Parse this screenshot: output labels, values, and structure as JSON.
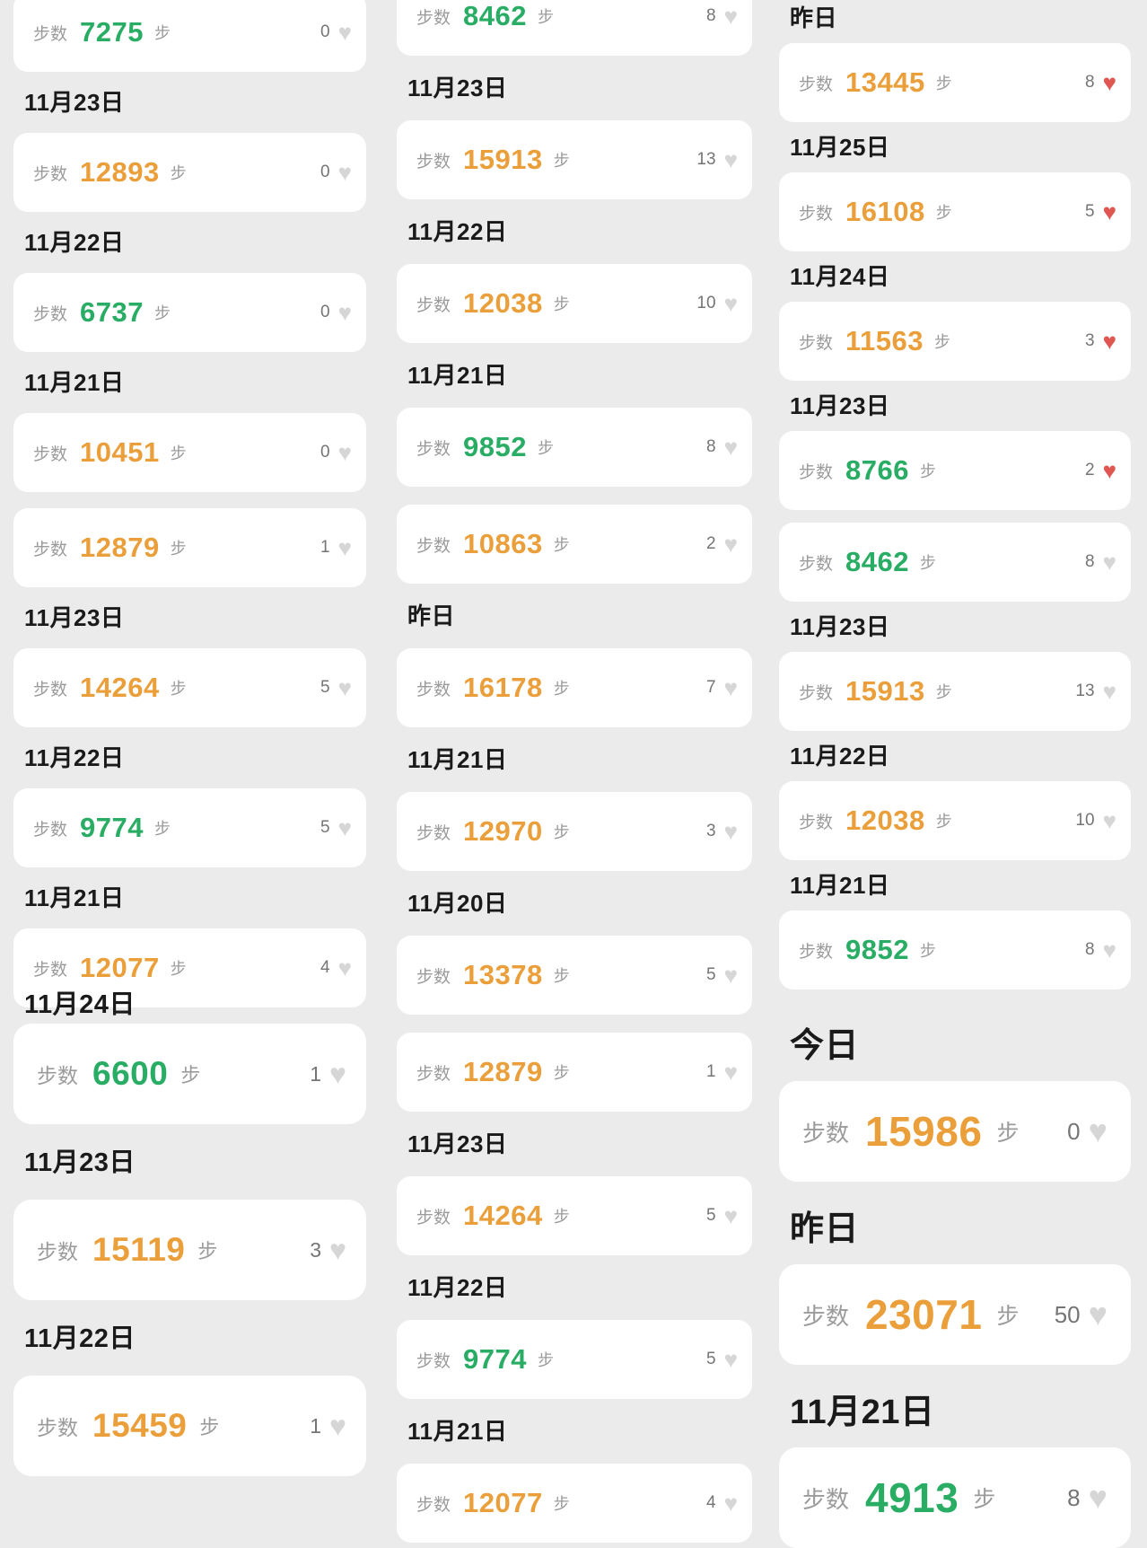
{
  "app": {
    "steps_label": "步数",
    "steps_unit": "步"
  },
  "palette": {
    "background": "#ebebeb",
    "card": "#ffffff",
    "header_text": "#1a1a1a",
    "label_gray": "#9b9b9b",
    "count_gray": "#757575",
    "steps_orange": "#eb9f3a",
    "steps_green": "#29ad64",
    "heart_red": "#e05752",
    "heart_gray": "#d6d6d6"
  },
  "columns": [
    {
      "id": "left",
      "items": [
        {
          "type": "card",
          "steps": "7275",
          "tone": "green",
          "likes": "0",
          "liked": false,
          "scale": "normal"
        },
        {
          "type": "header",
          "label": "11月23日",
          "scale": "normal"
        },
        {
          "type": "card",
          "steps": "12893",
          "tone": "orange",
          "likes": "0",
          "liked": false,
          "scale": "normal"
        },
        {
          "type": "header",
          "label": "11月22日",
          "scale": "normal"
        },
        {
          "type": "card",
          "steps": "6737",
          "tone": "green",
          "likes": "0",
          "liked": false,
          "scale": "normal"
        },
        {
          "type": "header",
          "label": "11月21日",
          "scale": "normal"
        },
        {
          "type": "card",
          "steps": "10451",
          "tone": "orange",
          "likes": "0",
          "liked": false,
          "scale": "normal"
        },
        {
          "type": "card",
          "steps": "12879",
          "tone": "orange",
          "likes": "1",
          "liked": false,
          "scale": "normal"
        },
        {
          "type": "header",
          "label": "11月23日",
          "scale": "normal"
        },
        {
          "type": "card",
          "steps": "14264",
          "tone": "orange",
          "likes": "5",
          "liked": false,
          "scale": "normal"
        },
        {
          "type": "header",
          "label": "11月22日",
          "scale": "normal"
        },
        {
          "type": "card",
          "steps": "9774",
          "tone": "green",
          "likes": "5",
          "liked": false,
          "scale": "normal"
        },
        {
          "type": "header",
          "label": "11月21日",
          "scale": "normal"
        },
        {
          "type": "card",
          "steps": "12077",
          "tone": "orange",
          "likes": "4",
          "liked": false,
          "scale": "normal"
        },
        {
          "type": "header",
          "label": "11月24日",
          "scale": "medium",
          "clipped": true
        },
        {
          "type": "card",
          "steps": "6600",
          "tone": "green",
          "likes": "1",
          "liked": false,
          "scale": "medium"
        },
        {
          "type": "header",
          "label": "11月23日",
          "scale": "medium"
        },
        {
          "type": "card",
          "steps": "15119",
          "tone": "orange",
          "likes": "3",
          "liked": false,
          "scale": "medium"
        },
        {
          "type": "header",
          "label": "11月22日",
          "scale": "medium"
        },
        {
          "type": "card",
          "steps": "15459",
          "tone": "orange",
          "likes": "1",
          "liked": false,
          "scale": "medium"
        }
      ]
    },
    {
      "id": "middle",
      "items": [
        {
          "type": "card",
          "steps": "8462",
          "tone": "green",
          "likes": "8",
          "liked": false,
          "scale": "normal"
        },
        {
          "type": "header",
          "label": "11月23日",
          "scale": "normal"
        },
        {
          "type": "card",
          "steps": "15913",
          "tone": "orange",
          "likes": "13",
          "liked": false,
          "scale": "normal"
        },
        {
          "type": "header",
          "label": "11月22日",
          "scale": "normal"
        },
        {
          "type": "card",
          "steps": "12038",
          "tone": "orange",
          "likes": "10",
          "liked": false,
          "scale": "normal"
        },
        {
          "type": "header",
          "label": "11月21日",
          "scale": "normal"
        },
        {
          "type": "card",
          "steps": "9852",
          "tone": "green",
          "likes": "8",
          "liked": false,
          "scale": "normal"
        },
        {
          "type": "card",
          "steps": "10863",
          "tone": "orange",
          "likes": "2",
          "liked": false,
          "scale": "normal"
        },
        {
          "type": "header",
          "label": "昨日",
          "scale": "normal"
        },
        {
          "type": "card",
          "steps": "16178",
          "tone": "orange",
          "likes": "7",
          "liked": false,
          "scale": "normal"
        },
        {
          "type": "header",
          "label": "11月21日",
          "scale": "normal"
        },
        {
          "type": "card",
          "steps": "12970",
          "tone": "orange",
          "likes": "3",
          "liked": false,
          "scale": "normal"
        },
        {
          "type": "header",
          "label": "11月20日",
          "scale": "normal"
        },
        {
          "type": "card",
          "steps": "13378",
          "tone": "orange",
          "likes": "5",
          "liked": false,
          "scale": "normal"
        },
        {
          "type": "card",
          "steps": "12879",
          "tone": "orange",
          "likes": "1",
          "liked": false,
          "scale": "normal"
        },
        {
          "type": "header",
          "label": "11月23日",
          "scale": "normal"
        },
        {
          "type": "card",
          "steps": "14264",
          "tone": "orange",
          "likes": "5",
          "liked": false,
          "scale": "normal"
        },
        {
          "type": "header",
          "label": "11月22日",
          "scale": "normal"
        },
        {
          "type": "card",
          "steps": "9774",
          "tone": "green",
          "likes": "5",
          "liked": false,
          "scale": "normal"
        },
        {
          "type": "header",
          "label": "11月21日",
          "scale": "normal"
        },
        {
          "type": "card",
          "steps": "12077",
          "tone": "orange",
          "likes": "4",
          "liked": false,
          "scale": "normal"
        }
      ]
    },
    {
      "id": "right",
      "items": [
        {
          "type": "header",
          "label": "昨日",
          "scale": "normal"
        },
        {
          "type": "card",
          "steps": "13445",
          "tone": "orange",
          "likes": "8",
          "liked": true,
          "scale": "normal"
        },
        {
          "type": "header",
          "label": "11月25日",
          "scale": "normal"
        },
        {
          "type": "card",
          "steps": "16108",
          "tone": "orange",
          "likes": "5",
          "liked": true,
          "scale": "normal"
        },
        {
          "type": "header",
          "label": "11月24日",
          "scale": "normal"
        },
        {
          "type": "card",
          "steps": "11563",
          "tone": "orange",
          "likes": "3",
          "liked": true,
          "scale": "normal"
        },
        {
          "type": "header",
          "label": "11月23日",
          "scale": "normal"
        },
        {
          "type": "card",
          "steps": "8766",
          "tone": "green",
          "likes": "2",
          "liked": true,
          "scale": "normal"
        },
        {
          "type": "card",
          "steps": "8462",
          "tone": "green",
          "likes": "8",
          "liked": false,
          "scale": "normal"
        },
        {
          "type": "header",
          "label": "11月23日",
          "scale": "normal"
        },
        {
          "type": "card",
          "steps": "15913",
          "tone": "orange",
          "likes": "13",
          "liked": false,
          "scale": "normal"
        },
        {
          "type": "header",
          "label": "11月22日",
          "scale": "normal"
        },
        {
          "type": "card",
          "steps": "12038",
          "tone": "orange",
          "likes": "10",
          "liked": false,
          "scale": "normal"
        },
        {
          "type": "header",
          "label": "11月21日",
          "scale": "normal"
        },
        {
          "type": "card",
          "steps": "9852",
          "tone": "green",
          "likes": "8",
          "liked": false,
          "scale": "normal"
        },
        {
          "type": "header",
          "label": "今日",
          "scale": "large",
          "extra_top": true
        },
        {
          "type": "card",
          "steps": "15986",
          "tone": "orange",
          "likes": "0",
          "liked": false,
          "scale": "large"
        },
        {
          "type": "header",
          "label": "昨日",
          "scale": "large"
        },
        {
          "type": "card",
          "steps": "23071",
          "tone": "orange",
          "likes": "50",
          "liked": false,
          "scale": "large"
        },
        {
          "type": "header",
          "label": "11月21日",
          "scale": "large"
        },
        {
          "type": "card",
          "steps": "4913",
          "tone": "green",
          "likes": "8",
          "liked": false,
          "scale": "large"
        }
      ]
    }
  ]
}
